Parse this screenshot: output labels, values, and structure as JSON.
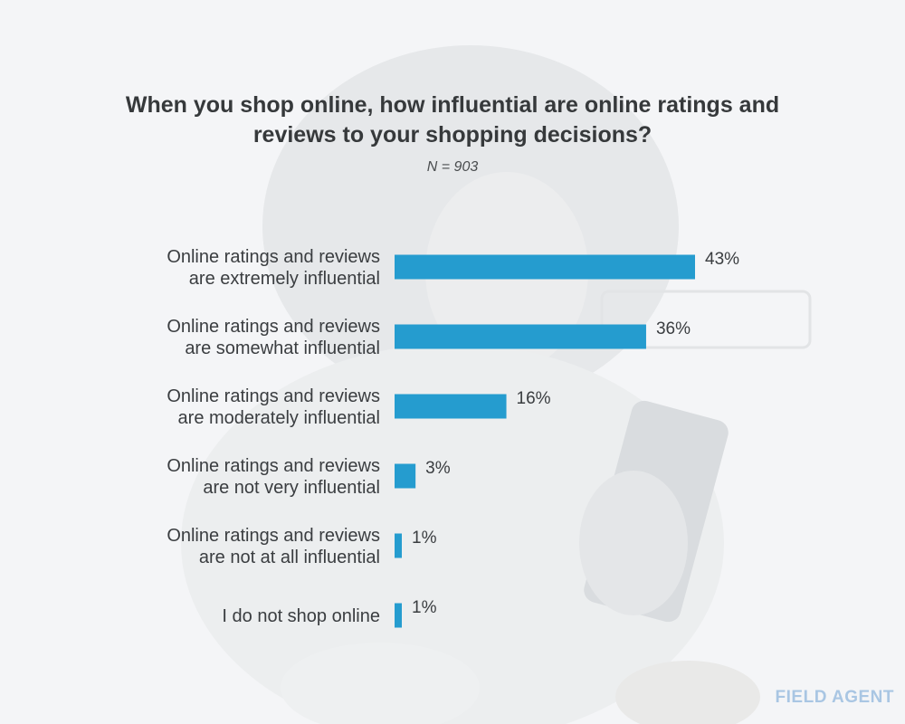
{
  "header": {
    "title": "When you shop online, how influential are online ratings and reviews to your shopping decisions?",
    "subtitle": "N = 903"
  },
  "brand": {
    "logo": "FIELD AGENT"
  },
  "colors": {
    "bar": "#259ccf",
    "background": "#f4f5f7",
    "logo": "#a9c6e3"
  },
  "chart_data": {
    "type": "bar",
    "orientation": "horizontal",
    "title": "When you shop online, how influential are online ratings and reviews to your shopping decisions?",
    "subtitle": "N = 903",
    "categories": [
      [
        "Online ratings and reviews",
        "are extremely influential"
      ],
      [
        "Online ratings and reviews",
        "are somewhat influential"
      ],
      [
        "Online ratings and reviews",
        "are moderately influential"
      ],
      [
        "Online ratings and reviews",
        "are not very influential"
      ],
      [
        "Online ratings and reviews",
        "are not at all influential"
      ],
      [
        "I do not shop online"
      ]
    ],
    "values": [
      43,
      36,
      16,
      3,
      1,
      1
    ],
    "value_labels": [
      "43%",
      "36%",
      "16%",
      "3%",
      "1%",
      "1%"
    ],
    "unit": "%",
    "xlim": [
      0,
      43
    ],
    "grid": false,
    "legend": "none"
  }
}
